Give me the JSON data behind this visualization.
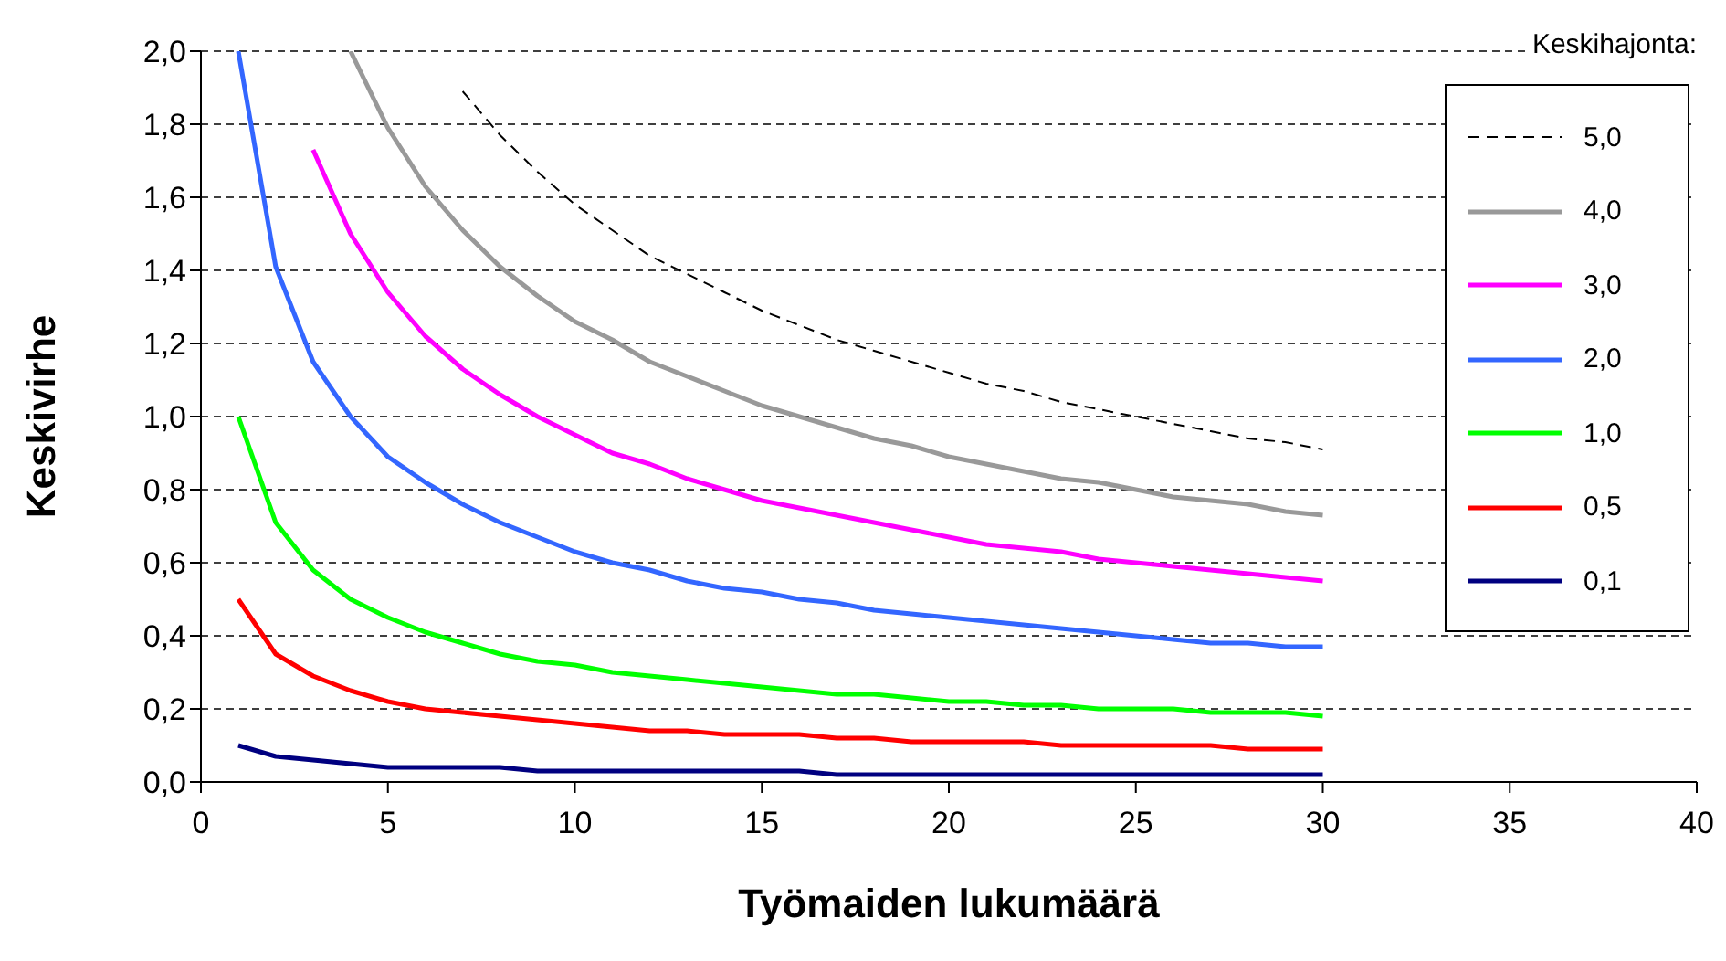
{
  "chart_data": {
    "type": "line",
    "xlabel": "Työmaiden lukumäärä",
    "ylabel": "Keskivirhe",
    "legend_title": "Keskihajonta:",
    "legend": "right",
    "grid": "y",
    "marker": "none",
    "x": [
      1,
      2,
      3,
      4,
      5,
      6,
      7,
      8,
      9,
      10,
      11,
      12,
      13,
      14,
      15,
      16,
      17,
      18,
      19,
      20,
      21,
      22,
      23,
      24,
      25,
      26,
      27,
      28,
      29,
      30
    ],
    "xlim": [
      0,
      40
    ],
    "xticks": [
      0,
      5,
      10,
      15,
      20,
      25,
      30,
      35,
      40
    ],
    "ylim": [
      0,
      2
    ],
    "yticks": [
      {
        "value": 0,
        "label": "0,0"
      },
      {
        "value": 0.2,
        "label": "0,2"
      },
      {
        "value": 0.4,
        "label": "0,4"
      },
      {
        "value": 0.6,
        "label": "0,6"
      },
      {
        "value": 0.8,
        "label": "0,8"
      },
      {
        "value": 1,
        "label": "1,0"
      },
      {
        "value": 1.2,
        "label": "1,2"
      },
      {
        "value": 1.4,
        "label": "1,4"
      },
      {
        "value": 1.6,
        "label": "1,6"
      },
      {
        "value": 1.8,
        "label": "1,8"
      },
      {
        "value": 2,
        "label": "2,0"
      }
    ],
    "series": [
      {
        "name": "5,0",
        "color": "#000000",
        "line_style": "dashed",
        "values": [
          null,
          null,
          null,
          null,
          null,
          null,
          1.89,
          1.77,
          1.67,
          1.58,
          1.51,
          1.44,
          1.39,
          1.34,
          1.29,
          1.25,
          1.21,
          1.18,
          1.15,
          1.12,
          1.09,
          1.07,
          1.04,
          1.02,
          1,
          0.98,
          0.96,
          0.94,
          0.93,
          0.91
        ]
      },
      {
        "name": "4,0",
        "color": "#999999",
        "line_style": "solid",
        "values": [
          null,
          null,
          null,
          2,
          1.79,
          1.63,
          1.51,
          1.41,
          1.33,
          1.26,
          1.21,
          1.15,
          1.11,
          1.07,
          1.03,
          1,
          0.97,
          0.94,
          0.92,
          0.89,
          0.87,
          0.85,
          0.83,
          0.82,
          0.8,
          0.78,
          0.77,
          0.76,
          0.74,
          0.73
        ]
      },
      {
        "name": "3,0",
        "color": "#ff00ff",
        "line_style": "solid",
        "values": [
          null,
          null,
          1.73,
          1.5,
          1.34,
          1.22,
          1.13,
          1.06,
          1,
          0.95,
          0.9,
          0.87,
          0.83,
          0.8,
          0.77,
          0.75,
          0.73,
          0.71,
          0.69,
          0.67,
          0.65,
          0.64,
          0.63,
          0.61,
          0.6,
          0.59,
          0.58,
          0.57,
          0.56,
          0.55
        ]
      },
      {
        "name": "2,0",
        "color": "#3366ff",
        "line_style": "solid",
        "values": [
          2,
          1.41,
          1.15,
          1,
          0.89,
          0.82,
          0.76,
          0.71,
          0.67,
          0.63,
          0.6,
          0.58,
          0.55,
          0.53,
          0.52,
          0.5,
          0.49,
          0.47,
          0.46,
          0.45,
          0.44,
          0.43,
          0.42,
          0.41,
          0.4,
          0.39,
          0.38,
          0.38,
          0.37,
          0.37
        ]
      },
      {
        "name": "1,0",
        "color": "#00ff00",
        "line_style": "solid",
        "values": [
          1,
          0.71,
          0.58,
          0.5,
          0.45,
          0.41,
          0.38,
          0.35,
          0.33,
          0.32,
          0.3,
          0.29,
          0.28,
          0.27,
          0.26,
          0.25,
          0.24,
          0.24,
          0.23,
          0.22,
          0.22,
          0.21,
          0.21,
          0.2,
          0.2,
          0.2,
          0.19,
          0.19,
          0.19,
          0.18
        ]
      },
      {
        "name": "0,5",
        "color": "#ff0000",
        "line_style": "solid",
        "values": [
          0.5,
          0.35,
          0.29,
          0.25,
          0.22,
          0.2,
          0.19,
          0.18,
          0.17,
          0.16,
          0.15,
          0.14,
          0.14,
          0.13,
          0.13,
          0.13,
          0.12,
          0.12,
          0.11,
          0.11,
          0.11,
          0.11,
          0.1,
          0.1,
          0.1,
          0.1,
          0.1,
          0.09,
          0.09,
          0.09
        ]
      },
      {
        "name": "0,1",
        "color": "#000080",
        "line_style": "solid",
        "values": [
          0.1,
          0.07,
          0.06,
          0.05,
          0.04,
          0.04,
          0.04,
          0.04,
          0.03,
          0.03,
          0.03,
          0.03,
          0.03,
          0.03,
          0.03,
          0.03,
          0.02,
          0.02,
          0.02,
          0.02,
          0.02,
          0.02,
          0.02,
          0.02,
          0.02,
          0.02,
          0.02,
          0.02,
          0.02,
          0.02
        ]
      }
    ]
  }
}
